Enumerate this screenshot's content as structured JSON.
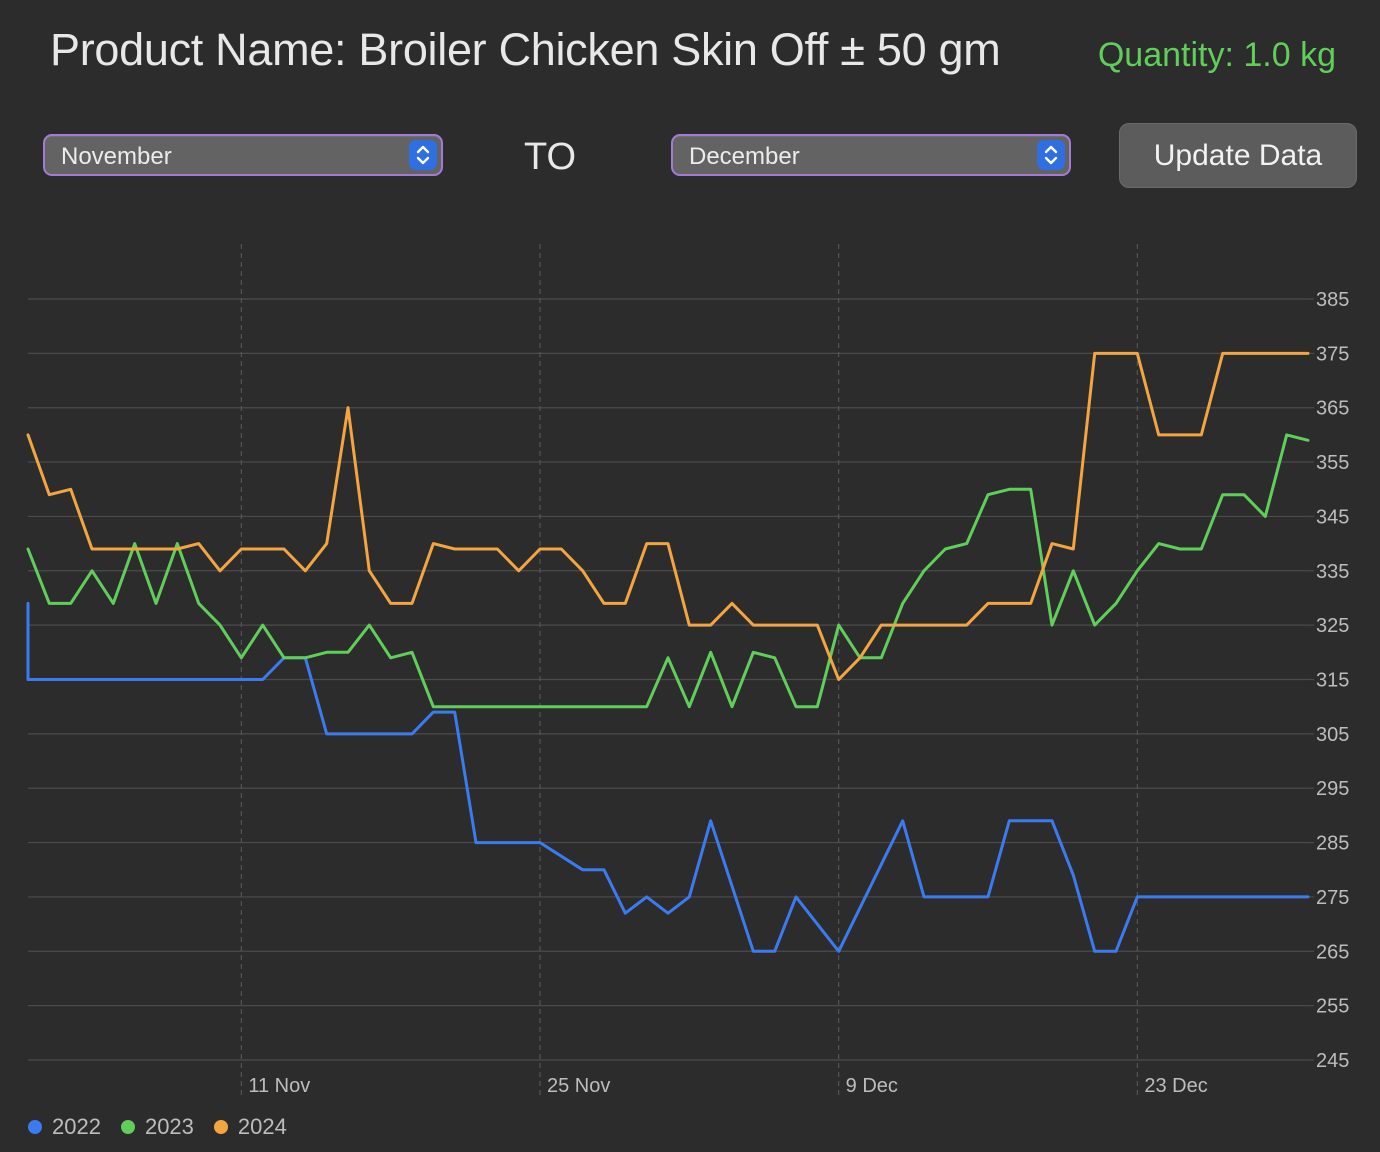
{
  "header": {
    "title": "Product Name: Broiler Chicken Skin Off ± 50 gm",
    "quantity": "Quantity: 1.0 kg"
  },
  "controls": {
    "from_month": "November",
    "to_label": "TO",
    "to_month": "December",
    "update_label": "Update Data"
  },
  "colors": {
    "background": "#2c2c2c",
    "accent_green": "#5fcf5a",
    "select_border": "#a57ad6",
    "stepper_blue": "#2f6ee3"
  },
  "icons": {
    "stepper": "chevron-up-down-icon"
  },
  "chart_data": {
    "type": "line",
    "x_type": "date",
    "xlim": [
      "2024-11-01",
      "2024-12-31"
    ],
    "ylim": [
      245,
      385
    ],
    "yticks": [
      245,
      255,
      265,
      275,
      285,
      295,
      305,
      315,
      325,
      335,
      345,
      355,
      365,
      375,
      385
    ],
    "xticks": [
      {
        "date": "2024-11-11",
        "label": "11 Nov"
      },
      {
        "date": "2024-11-25",
        "label": "25 Nov"
      },
      {
        "date": "2024-12-09",
        "label": "9 Dec"
      },
      {
        "date": "2024-12-23",
        "label": "23 Dec"
      }
    ],
    "grid": true,
    "legend_position": "bottom-left",
    "series": [
      {
        "name": "2022",
        "color": "#3b7bf0",
        "points": [
          [
            "2024-11-01",
            329
          ],
          [
            "2024-11-01",
            315
          ],
          [
            "2024-11-02",
            315
          ],
          [
            "2024-11-05",
            315
          ],
          [
            "2024-11-10",
            315
          ],
          [
            "2024-11-12",
            315
          ],
          [
            "2024-11-13",
            319
          ],
          [
            "2024-11-14",
            319
          ],
          [
            "2024-11-15",
            305
          ],
          [
            "2024-11-17",
            305
          ],
          [
            "2024-11-19",
            305
          ],
          [
            "2024-11-20",
            309
          ],
          [
            "2024-11-21",
            309
          ],
          [
            "2024-11-22",
            285
          ],
          [
            "2024-11-25",
            285
          ],
          [
            "2024-11-27",
            280
          ],
          [
            "2024-11-28",
            280
          ],
          [
            "2024-11-29",
            272
          ],
          [
            "2024-11-30",
            275
          ],
          [
            "2024-12-01",
            272
          ],
          [
            "2024-12-02",
            275
          ],
          [
            "2024-12-03",
            289
          ],
          [
            "2024-12-05",
            265
          ],
          [
            "2024-12-06",
            265
          ],
          [
            "2024-12-07",
            275
          ],
          [
            "2024-12-09",
            265
          ],
          [
            "2024-12-12",
            289
          ],
          [
            "2024-12-13",
            275
          ],
          [
            "2024-12-16",
            275
          ],
          [
            "2024-12-17",
            289
          ],
          [
            "2024-12-19",
            289
          ],
          [
            "2024-12-20",
            279
          ],
          [
            "2024-12-21",
            265
          ],
          [
            "2024-12-22",
            265
          ],
          [
            "2024-12-23",
            275
          ],
          [
            "2024-12-31",
            275
          ]
        ]
      },
      {
        "name": "2023",
        "color": "#5fcf5a",
        "points": [
          [
            "2024-11-01",
            339
          ],
          [
            "2024-11-02",
            329
          ],
          [
            "2024-11-03",
            329
          ],
          [
            "2024-11-04",
            335
          ],
          [
            "2024-11-05",
            329
          ],
          [
            "2024-11-06",
            340
          ],
          [
            "2024-11-07",
            329
          ],
          [
            "2024-11-08",
            340
          ],
          [
            "2024-11-09",
            329
          ],
          [
            "2024-11-10",
            325
          ],
          [
            "2024-11-11",
            319
          ],
          [
            "2024-11-12",
            325
          ],
          [
            "2024-11-13",
            319
          ],
          [
            "2024-11-14",
            319
          ],
          [
            "2024-11-15",
            320
          ],
          [
            "2024-11-16",
            320
          ],
          [
            "2024-11-17",
            325
          ],
          [
            "2024-11-18",
            319
          ],
          [
            "2024-11-19",
            320
          ],
          [
            "2024-11-20",
            310
          ],
          [
            "2024-11-30",
            310
          ],
          [
            "2024-12-01",
            319
          ],
          [
            "2024-12-02",
            310
          ],
          [
            "2024-12-03",
            320
          ],
          [
            "2024-12-04",
            310
          ],
          [
            "2024-12-05",
            320
          ],
          [
            "2024-12-06",
            319
          ],
          [
            "2024-12-07",
            310
          ],
          [
            "2024-12-08",
            310
          ],
          [
            "2024-12-09",
            325
          ],
          [
            "2024-12-10",
            319
          ],
          [
            "2024-12-11",
            319
          ],
          [
            "2024-12-12",
            329
          ],
          [
            "2024-12-13",
            335
          ],
          [
            "2024-12-14",
            339
          ],
          [
            "2024-12-15",
            340
          ],
          [
            "2024-12-16",
            349
          ],
          [
            "2024-12-17",
            350
          ],
          [
            "2024-12-18",
            350
          ],
          [
            "2024-12-19",
            325
          ],
          [
            "2024-12-20",
            335
          ],
          [
            "2024-12-21",
            325
          ],
          [
            "2024-12-22",
            329
          ],
          [
            "2024-12-23",
            335
          ],
          [
            "2024-12-24",
            340
          ],
          [
            "2024-12-25",
            339
          ],
          [
            "2024-12-26",
            339
          ],
          [
            "2024-12-27",
            349
          ],
          [
            "2024-12-28",
            349
          ],
          [
            "2024-12-29",
            345
          ],
          [
            "2024-12-30",
            360
          ],
          [
            "2024-12-31",
            359
          ]
        ]
      },
      {
        "name": "2024",
        "color": "#f2a540",
        "points": [
          [
            "2024-11-01",
            360
          ],
          [
            "2024-11-02",
            349
          ],
          [
            "2024-11-03",
            350
          ],
          [
            "2024-11-04",
            339
          ],
          [
            "2024-11-08",
            339
          ],
          [
            "2024-11-09",
            340
          ],
          [
            "2024-11-10",
            335
          ],
          [
            "2024-11-11",
            339
          ],
          [
            "2024-11-13",
            339
          ],
          [
            "2024-11-14",
            335
          ],
          [
            "2024-11-15",
            340
          ],
          [
            "2024-11-16",
            365
          ],
          [
            "2024-11-17",
            335
          ],
          [
            "2024-11-18",
            329
          ],
          [
            "2024-11-19",
            329
          ],
          [
            "2024-11-20",
            340
          ],
          [
            "2024-11-21",
            339
          ],
          [
            "2024-11-23",
            339
          ],
          [
            "2024-11-24",
            335
          ],
          [
            "2024-11-25",
            339
          ],
          [
            "2024-11-26",
            339
          ],
          [
            "2024-11-27",
            335
          ],
          [
            "2024-11-28",
            329
          ],
          [
            "2024-11-29",
            329
          ],
          [
            "2024-11-30",
            340
          ],
          [
            "2024-12-01",
            340
          ],
          [
            "2024-12-02",
            325
          ],
          [
            "2024-12-03",
            325
          ],
          [
            "2024-12-04",
            329
          ],
          [
            "2024-12-05",
            325
          ],
          [
            "2024-12-08",
            325
          ],
          [
            "2024-12-09",
            315
          ],
          [
            "2024-12-10",
            319
          ],
          [
            "2024-12-11",
            325
          ],
          [
            "2024-12-15",
            325
          ],
          [
            "2024-12-16",
            329
          ],
          [
            "2024-12-18",
            329
          ],
          [
            "2024-12-19",
            340
          ],
          [
            "2024-12-20",
            339
          ],
          [
            "2024-12-21",
            375
          ],
          [
            "2024-12-23",
            375
          ],
          [
            "2024-12-24",
            360
          ],
          [
            "2024-12-26",
            360
          ],
          [
            "2024-12-27",
            375
          ],
          [
            "2024-12-31",
            375
          ]
        ]
      }
    ]
  }
}
